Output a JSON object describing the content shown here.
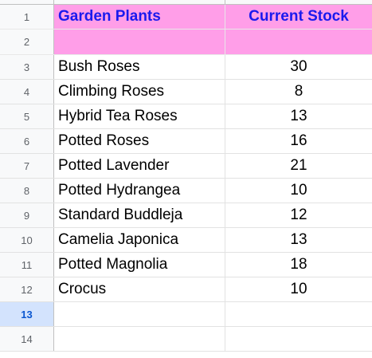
{
  "sheet": {
    "header": {
      "row_number": "1",
      "col_a": "Garden Plants",
      "col_b": "Current Stock"
    },
    "pink_row_number": "2",
    "rows": [
      {
        "num": "3",
        "plant": "Bush Roses",
        "stock": "30"
      },
      {
        "num": "4",
        "plant": "Climbing Roses",
        "stock": "8"
      },
      {
        "num": "5",
        "plant": "Hybrid Tea Roses",
        "stock": "13"
      },
      {
        "num": "6",
        "plant": "Potted Roses",
        "stock": "16"
      },
      {
        "num": "7",
        "plant": "Potted Lavender",
        "stock": "21"
      },
      {
        "num": "8",
        "plant": "Potted Hydrangea",
        "stock": "10"
      },
      {
        "num": "9",
        "plant": "Standard Buddleja",
        "stock": "12"
      },
      {
        "num": "10",
        "plant": "Camelia Japonica",
        "stock": "13"
      },
      {
        "num": "11",
        "plant": "Potted Magnolia",
        "stock": "18"
      },
      {
        "num": "12",
        "plant": "Crocus",
        "stock": "10"
      }
    ],
    "empty_rows": [
      "13",
      "14"
    ],
    "selected_row": "13",
    "colors": {
      "header_fill": "#ff9ee8",
      "header_text": "#1a1aee",
      "selected_row_fill": "#d3e3fd",
      "selected_row_text": "#0b57d0"
    }
  }
}
